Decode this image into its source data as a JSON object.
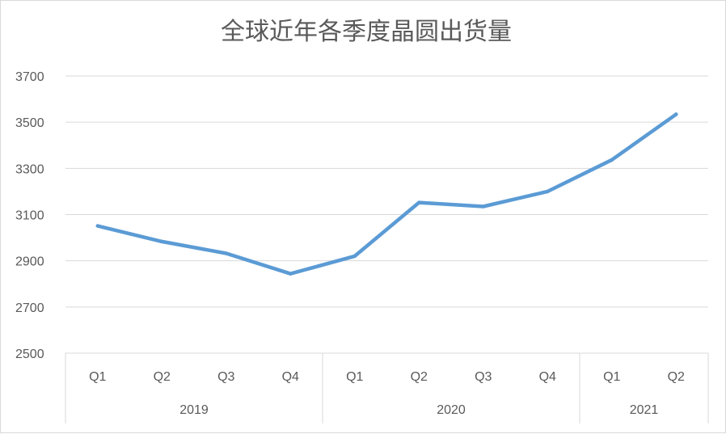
{
  "chart_data": {
    "type": "line",
    "title": "全球近年各季度晶圆出货量",
    "xlabel": "",
    "ylabel": "",
    "ylim": [
      2500,
      3700
    ],
    "y_ticks": [
      2500,
      2700,
      2900,
      3100,
      3300,
      3500,
      3700
    ],
    "grid": true,
    "legend": "none",
    "categories": [
      "Q1",
      "Q2",
      "Q3",
      "Q4",
      "Q1",
      "Q2",
      "Q3",
      "Q4",
      "Q1",
      "Q2"
    ],
    "groups": [
      {
        "label": "2019",
        "count": 4
      },
      {
        "label": "2020",
        "count": 4
      },
      {
        "label": "2021",
        "count": 2
      }
    ],
    "series": [
      {
        "color": "#5b9bd5",
        "values": [
          3051,
          2983,
          2932,
          2844,
          2920,
          3152,
          3135,
          3200,
          3337,
          3534
        ]
      }
    ]
  }
}
